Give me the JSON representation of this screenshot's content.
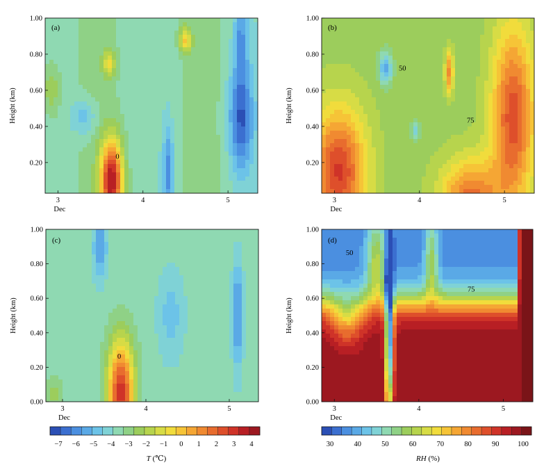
{
  "figure": {
    "colors": {
      "temperature_scale": [
        "#2b4fb5",
        "#3b6fd0",
        "#4b8fe0",
        "#5aa9e6",
        "#6cc3e8",
        "#7fd2d6",
        "#8fd9b2",
        "#8fd186",
        "#9ccd5c",
        "#b7d44d",
        "#d7dc45",
        "#f1dc3c",
        "#f6c437",
        "#f5a634",
        "#f08a31",
        "#e86c2e",
        "#de4f2b",
        "#cf3328",
        "#b81f24",
        "#9c1820"
      ],
      "rh_scale": [
        "#2b4fb5",
        "#3b6fd0",
        "#4b8fe0",
        "#5aa9e6",
        "#6cc3e8",
        "#7fd2d6",
        "#8fd9b2",
        "#8fd186",
        "#9ccd5c",
        "#b7d44d",
        "#d7dc45",
        "#f1dc3c",
        "#f6c437",
        "#f5a634",
        "#f08a31",
        "#e86c2e",
        "#de4f2b",
        "#cf3328",
        "#b81f24",
        "#9c1820",
        "#7a1418"
      ]
    },
    "colorbars": [
      {
        "id": "temperature",
        "label": "T (℃)",
        "label_italic": "T",
        "label_unit": "(℃)",
        "ticks": [
          "−7",
          "−6",
          "−5",
          "−4",
          "−3",
          "−2",
          "−1",
          "0",
          "1",
          "2",
          "3",
          "4"
        ]
      },
      {
        "id": "rh",
        "label": "RH (%)",
        "label_italic": "RH",
        "label_unit": "(%)",
        "ticks": [
          "30",
          "40",
          "50",
          "60",
          "70",
          "80",
          "90",
          "100"
        ]
      }
    ]
  },
  "chart_data": [
    {
      "type": "heatmap",
      "panel": "(a)",
      "variable": "T",
      "field": "temp",
      "ylabel": "Height (km)",
      "xlabel": "Dec",
      "xlim": [
        2.85,
        5.35
      ],
      "ylim": [
        0.03,
        1.0
      ],
      "xticks": [
        "3",
        "4",
        "5"
      ],
      "yticks": [
        "0.20",
        "0.40",
        "0.60",
        "0.80",
        "1.00"
      ],
      "contour_labels": [
        {
          "text": "0",
          "x": 3.7,
          "y": 0.22
        }
      ]
    },
    {
      "type": "heatmap",
      "panel": "(b)",
      "variable": "RH",
      "field": "rh",
      "ylabel": "Height (km)",
      "xlabel": "Dec",
      "xlim": [
        2.85,
        5.35
      ],
      "ylim": [
        0.03,
        1.0
      ],
      "xticks": [
        "3",
        "4",
        "5"
      ],
      "yticks": [
        "0.20",
        "0.40",
        "0.60",
        "0.80",
        "1.00"
      ],
      "contour_labels": [
        {
          "text": "50",
          "x": 3.8,
          "y": 0.71
        },
        {
          "text": "75",
          "x": 4.6,
          "y": 0.42
        }
      ]
    },
    {
      "type": "heatmap",
      "panel": "(c)",
      "variable": "T",
      "field": "temp",
      "ylabel": "Height (km)",
      "xlabel": "Dec",
      "xlim": [
        2.8,
        5.35
      ],
      "ylim": [
        0.0,
        1.0
      ],
      "xticks": [
        "3",
        "4",
        "5"
      ],
      "yticks": [
        "0.00",
        "0.20",
        "0.40",
        "0.60",
        "0.80",
        "1.00"
      ],
      "contour_labels": [
        {
          "text": "0",
          "x": 3.68,
          "y": 0.25
        }
      ]
    },
    {
      "type": "heatmap",
      "panel": "(d)",
      "variable": "RH",
      "field": "rh",
      "ylabel": "Height (km)",
      "xlabel": "Dec",
      "xlim": [
        2.85,
        5.35
      ],
      "ylim": [
        0.0,
        1.0
      ],
      "xticks": [
        "3",
        "4",
        "5"
      ],
      "yticks": [
        "0.00",
        "0.20",
        "0.40",
        "0.60",
        "0.80",
        "1.00"
      ],
      "contour_labels": [
        {
          "text": "50",
          "x": 3.18,
          "y": 0.85
        },
        {
          "text": "75",
          "x": 4.62,
          "y": 0.64
        }
      ]
    }
  ]
}
